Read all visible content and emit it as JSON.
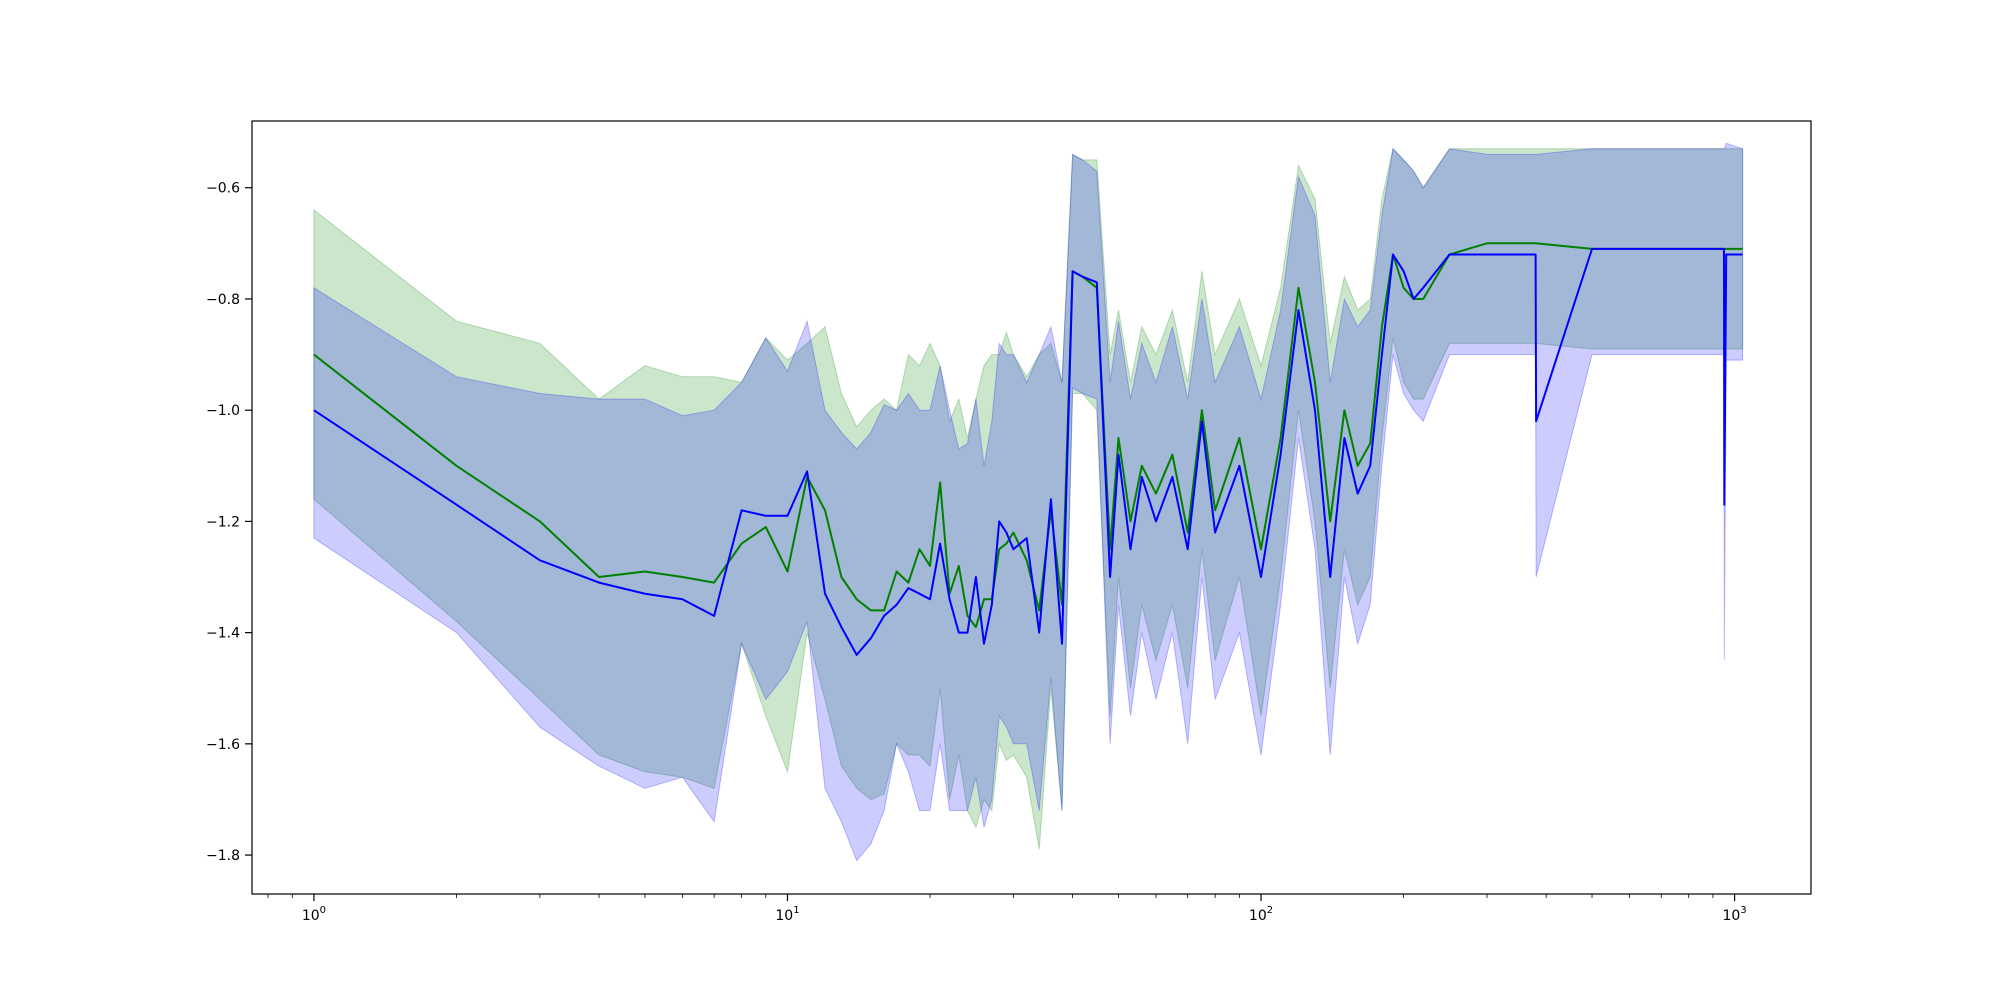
{
  "chart_data": {
    "type": "line",
    "title": "",
    "xlabel": "",
    "ylabel": "",
    "xscale": "log",
    "xlim": [
      0.74,
      1450
    ],
    "ylim": [
      -1.87,
      -0.48
    ],
    "x_ticks": [
      {
        "value": 1,
        "base": "10",
        "exp": "0"
      },
      {
        "value": 10,
        "base": "10",
        "exp": "1"
      },
      {
        "value": 100,
        "base": "10",
        "exp": "2"
      },
      {
        "value": 1000,
        "base": "10",
        "exp": "3"
      }
    ],
    "y_ticks": [
      {
        "value": -0.6,
        "label": "−0.6"
      },
      {
        "value": -0.8,
        "label": "−0.8"
      },
      {
        "value": -1.0,
        "label": "−1.0"
      },
      {
        "value": -1.2,
        "label": "−1.2"
      },
      {
        "value": -1.4,
        "label": "−1.4"
      },
      {
        "value": -1.6,
        "label": "−1.6"
      },
      {
        "value": -1.8,
        "label": "−1.8"
      }
    ],
    "grid": false,
    "legend": "none",
    "series": [
      {
        "color": "#008000",
        "band_color": "#008000",
        "band_opacity": 0.2,
        "x": [
          1,
          2,
          3,
          4,
          5,
          6,
          7,
          8,
          9,
          10,
          11,
          12,
          13,
          14,
          15,
          16,
          17,
          18,
          19,
          20,
          21,
          22,
          23,
          24,
          25,
          26,
          27,
          28,
          29,
          30,
          32,
          34,
          36,
          38,
          40,
          42,
          45,
          48,
          50,
          53,
          56,
          60,
          65,
          70,
          75,
          80,
          90,
          100,
          110,
          120,
          130,
          140,
          150,
          160,
          170,
          180,
          190,
          200,
          210,
          220,
          250,
          300,
          380,
          500,
          700,
          950,
          1040
        ],
        "y": [
          -0.9,
          -1.1,
          -1.2,
          -1.3,
          -1.29,
          -1.3,
          -1.31,
          -1.24,
          -1.21,
          -1.29,
          -1.12,
          -1.18,
          -1.3,
          -1.34,
          -1.36,
          -1.36,
          -1.29,
          -1.31,
          -1.25,
          -1.28,
          -1.13,
          -1.33,
          -1.28,
          -1.37,
          -1.39,
          -1.34,
          -1.34,
          -1.25,
          -1.24,
          -1.22,
          -1.27,
          -1.36,
          -1.18,
          -1.35,
          -0.75,
          -0.76,
          -0.78,
          -1.25,
          -1.05,
          -1.2,
          -1.1,
          -1.15,
          -1.08,
          -1.22,
          -1.0,
          -1.18,
          -1.05,
          -1.25,
          -1.05,
          -0.78,
          -0.95,
          -1.2,
          -1.0,
          -1.1,
          -1.06,
          -0.85,
          -0.72,
          -0.78,
          -0.8,
          -0.8,
          -0.72,
          -0.7,
          -0.7,
          -0.71,
          -0.71,
          -0.71,
          -0.71
        ],
        "upper": [
          -0.64,
          -0.84,
          -0.88,
          -0.98,
          -0.92,
          -0.94,
          -0.94,
          -0.95,
          -0.87,
          -0.91,
          -0.88,
          -0.85,
          -0.97,
          -1.03,
          -1.0,
          -0.98,
          -1.0,
          -0.9,
          -0.92,
          -0.88,
          -0.92,
          -1.02,
          -0.98,
          -1.05,
          -0.98,
          -0.92,
          -0.9,
          -0.9,
          -0.86,
          -0.9,
          -0.94,
          -0.9,
          -0.88,
          -0.95,
          -0.54,
          -0.55,
          -0.55,
          -0.9,
          -0.82,
          -0.95,
          -0.85,
          -0.9,
          -0.82,
          -0.95,
          -0.75,
          -0.9,
          -0.8,
          -0.92,
          -0.78,
          -0.56,
          -0.62,
          -0.88,
          -0.76,
          -0.82,
          -0.8,
          -0.62,
          -0.53,
          -0.55,
          -0.57,
          -0.6,
          -0.53,
          -0.53,
          -0.53,
          -0.53,
          -0.53,
          -0.53,
          -0.53
        ],
        "lower": [
          -1.16,
          -1.38,
          -1.52,
          -1.62,
          -1.65,
          -1.66,
          -1.68,
          -1.42,
          -1.55,
          -1.65,
          -1.4,
          -1.52,
          -1.64,
          -1.68,
          -1.7,
          -1.69,
          -1.6,
          -1.62,
          -1.62,
          -1.64,
          -1.5,
          -1.7,
          -1.62,
          -1.72,
          -1.75,
          -1.7,
          -1.72,
          -1.6,
          -1.63,
          -1.62,
          -1.66,
          -1.79,
          -1.5,
          -1.72,
          -0.97,
          -0.97,
          -1.0,
          -1.55,
          -1.3,
          -1.5,
          -1.35,
          -1.45,
          -1.35,
          -1.5,
          -1.25,
          -1.45,
          -1.3,
          -1.55,
          -1.3,
          -1.0,
          -1.2,
          -1.5,
          -1.25,
          -1.35,
          -1.3,
          -1.05,
          -0.87,
          -0.95,
          -0.98,
          -0.98,
          -0.88,
          -0.88,
          -0.88,
          -0.89,
          -0.89,
          -0.89,
          -0.89
        ]
      },
      {
        "color": "#0000ff",
        "band_color": "#0000ff",
        "band_opacity": 0.2,
        "x": [
          1,
          2,
          3,
          4,
          5,
          6,
          7,
          8,
          9,
          10,
          11,
          12,
          13,
          14,
          15,
          16,
          17,
          18,
          19,
          20,
          21,
          22,
          23,
          24,
          25,
          26,
          27,
          28,
          29,
          30,
          32,
          34,
          36,
          38,
          40,
          42,
          45,
          48,
          50,
          53,
          56,
          60,
          65,
          70,
          75,
          80,
          90,
          100,
          110,
          120,
          130,
          140,
          150,
          160,
          170,
          180,
          190,
          200,
          210,
          220,
          250,
          300,
          380,
          381,
          500,
          700,
          950,
          951,
          960,
          1040
        ],
        "y": [
          -1.0,
          -1.17,
          -1.27,
          -1.31,
          -1.33,
          -1.34,
          -1.37,
          -1.18,
          -1.19,
          -1.19,
          -1.11,
          -1.33,
          -1.39,
          -1.44,
          -1.41,
          -1.37,
          -1.35,
          -1.32,
          -1.33,
          -1.34,
          -1.24,
          -1.34,
          -1.4,
          -1.4,
          -1.3,
          -1.42,
          -1.35,
          -1.2,
          -1.22,
          -1.25,
          -1.23,
          -1.4,
          -1.16,
          -1.42,
          -0.75,
          -0.76,
          -0.77,
          -1.3,
          -1.08,
          -1.25,
          -1.12,
          -1.2,
          -1.12,
          -1.25,
          -1.02,
          -1.22,
          -1.1,
          -1.3,
          -1.08,
          -0.82,
          -1.0,
          -1.3,
          -1.05,
          -1.15,
          -1.1,
          -0.9,
          -0.72,
          -0.75,
          -0.8,
          -0.78,
          -0.72,
          -0.72,
          -0.72,
          -1.02,
          -0.71,
          -0.71,
          -0.71,
          -1.17,
          -0.72,
          -0.72
        ],
        "upper": [
          -0.78,
          -0.94,
          -0.97,
          -0.98,
          -0.98,
          -1.01,
          -1.0,
          -0.95,
          -0.87,
          -0.93,
          -0.84,
          -1.0,
          -1.04,
          -1.07,
          -1.04,
          -0.99,
          -1.0,
          -0.97,
          -1.0,
          -1.0,
          -0.92,
          -1.0,
          -1.07,
          -1.06,
          -0.98,
          -1.1,
          -1.02,
          -0.88,
          -0.9,
          -0.9,
          -0.95,
          -0.9,
          -0.85,
          -0.95,
          -0.54,
          -0.55,
          -0.57,
          -0.95,
          -0.84,
          -0.98,
          -0.88,
          -0.95,
          -0.85,
          -0.98,
          -0.8,
          -0.95,
          -0.85,
          -0.98,
          -0.82,
          -0.58,
          -0.65,
          -0.95,
          -0.8,
          -0.85,
          -0.82,
          -0.65,
          -0.53,
          -0.55,
          -0.57,
          -0.6,
          -0.53,
          -0.54,
          -0.54,
          -0.54,
          -0.53,
          -0.53,
          -0.53,
          -0.53,
          -0.52,
          -0.53
        ],
        "lower": [
          -1.23,
          -1.4,
          -1.57,
          -1.64,
          -1.68,
          -1.66,
          -1.74,
          -1.42,
          -1.52,
          -1.47,
          -1.38,
          -1.68,
          -1.74,
          -1.81,
          -1.78,
          -1.72,
          -1.6,
          -1.65,
          -1.72,
          -1.72,
          -1.6,
          -1.72,
          -1.72,
          -1.72,
          -1.66,
          -1.75,
          -1.7,
          -1.55,
          -1.57,
          -1.6,
          -1.6,
          -1.72,
          -1.48,
          -1.72,
          -0.96,
          -0.97,
          -0.98,
          -1.6,
          -1.35,
          -1.55,
          -1.4,
          -1.52,
          -1.4,
          -1.6,
          -1.3,
          -1.52,
          -1.4,
          -1.62,
          -1.35,
          -1.05,
          -1.25,
          -1.62,
          -1.3,
          -1.42,
          -1.35,
          -1.1,
          -0.9,
          -0.97,
          -1.0,
          -1.02,
          -0.9,
          -0.9,
          -0.9,
          -1.3,
          -0.9,
          -0.9,
          -0.9,
          -1.45,
          -0.91,
          -0.91
        ]
      }
    ]
  }
}
